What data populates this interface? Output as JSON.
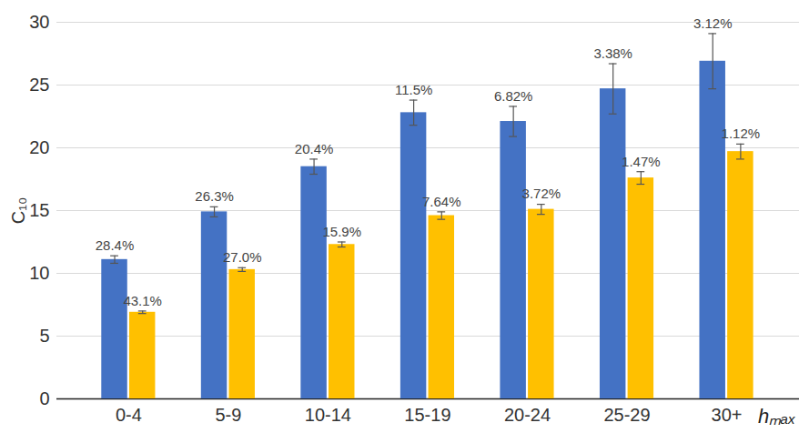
{
  "chart_data": {
    "type": "bar",
    "x_label": "hₘₐₓ",
    "y_label": "C₁₀",
    "categories": [
      "0-4",
      "5-9",
      "10-14",
      "15-19",
      "20-24",
      "25-29",
      "30+"
    ],
    "series": [
      {
        "color": "#4472c4",
        "values": [
          11.1,
          14.9,
          18.5,
          22.8,
          22.1,
          24.7,
          26.9
        ],
        "errors": [
          0.3,
          0.4,
          0.6,
          1.0,
          1.2,
          2.0,
          2.2
        ],
        "annotations": [
          "28.4%",
          "26.3%",
          "20.4%",
          "11.5%",
          "6.82%",
          "3.38%",
          "3.12%"
        ]
      },
      {
        "color": "#ffc000",
        "values": [
          6.9,
          10.3,
          12.3,
          14.6,
          15.1,
          17.6,
          19.7
        ],
        "errors": [
          0.1,
          0.15,
          0.2,
          0.3,
          0.4,
          0.5,
          0.6
        ],
        "annotations": [
          "43.1%",
          "27.0%",
          "15.9%",
          "7.64%",
          "3.72%",
          "1.47%",
          "1.12%"
        ]
      }
    ],
    "ylim": [
      0,
      30
    ],
    "yticks": [
      0,
      5,
      10,
      15,
      20,
      25,
      30
    ],
    "grid": true
  }
}
